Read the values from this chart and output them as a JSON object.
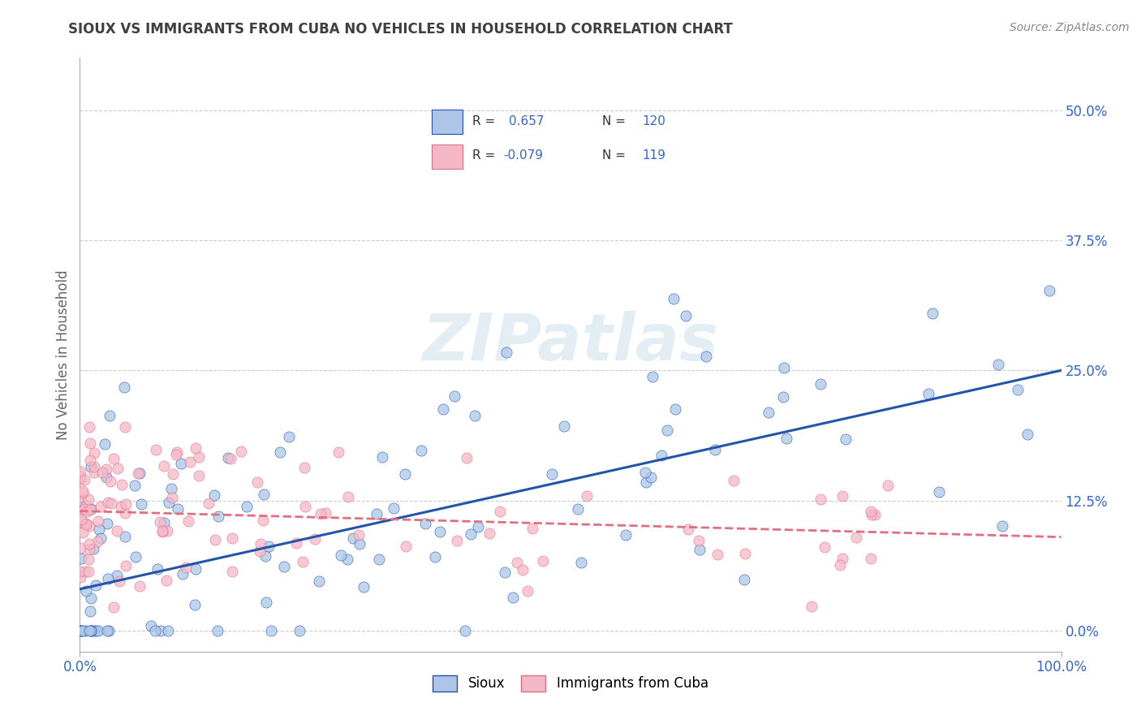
{
  "title": "SIOUX VS IMMIGRANTS FROM CUBA NO VEHICLES IN HOUSEHOLD CORRELATION CHART",
  "source": "Source: ZipAtlas.com",
  "ylabel": "No Vehicles in Household",
  "xlim": [
    0.0,
    1.0
  ],
  "ylim": [
    -0.02,
    0.55
  ],
  "xtick_labels": [
    "0.0%",
    "100.0%"
  ],
  "ytick_labels": [
    "0.0%",
    "12.5%",
    "25.0%",
    "37.5%",
    "50.0%"
  ],
  "ytick_positions": [
    0.0,
    0.125,
    0.25,
    0.375,
    0.5
  ],
  "legend_r1_val": "0.657",
  "legend_n1_val": "120",
  "legend_r2_val": "-0.079",
  "legend_n2_val": "119",
  "color_sioux": "#adc6e8",
  "color_cuba": "#f5b8c8",
  "color_line_sioux": "#2255aa",
  "color_line_cuba": "#e07080",
  "watermark": "ZIPatlas",
  "background_color": "#ffffff",
  "grid_color": "#cccccc",
  "title_color": "#404040",
  "legend_text_color": "#3366cc",
  "sioux_line_intercept": 0.04,
  "sioux_line_slope": 0.21,
  "cuba_line_intercept": 0.115,
  "cuba_line_slope": -0.025
}
